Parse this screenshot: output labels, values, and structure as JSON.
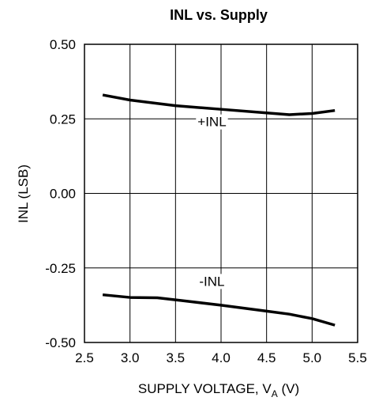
{
  "chart_data": {
    "type": "line",
    "title": "INL vs. Supply",
    "xlabel": {
      "main": "SUPPLY VOLTAGE, V",
      "subscript": "A",
      "unit": " (V)"
    },
    "ylabel": "INL (LSB)",
    "xlim": [
      2.5,
      5.5
    ],
    "ylim": [
      -0.5,
      0.5
    ],
    "x_ticks": [
      2.5,
      3.0,
      3.5,
      4.0,
      4.5,
      5.0,
      5.5
    ],
    "x_tick_labels": [
      "2.5",
      "3.0",
      "3.5",
      "4.0",
      "4.5",
      "5.0",
      "5.5"
    ],
    "y_ticks": [
      0.5,
      0.25,
      0.0,
      -0.25,
      -0.5
    ],
    "y_tick_labels": [
      "0.50",
      "0.25",
      "0.00",
      "-0.25",
      "-0.50"
    ],
    "grid": true,
    "series": [
      {
        "name": "+INL",
        "color": "#000000",
        "x": [
          2.7,
          3.0,
          3.5,
          4.0,
          4.5,
          4.75,
          5.0,
          5.25
        ],
        "y": [
          0.33,
          0.313,
          0.294,
          0.282,
          0.27,
          0.264,
          0.268,
          0.278
        ]
      },
      {
        "name": "-INL",
        "color": "#000000",
        "x": [
          2.7,
          3.0,
          3.3,
          3.5,
          4.0,
          4.5,
          4.75,
          5.0,
          5.25
        ],
        "y": [
          -0.34,
          -0.349,
          -0.35,
          -0.357,
          -0.375,
          -0.395,
          -0.405,
          -0.42,
          -0.442
        ]
      }
    ],
    "annotations": [
      {
        "text": "+INL",
        "x": 3.9,
        "y": 0.225
      },
      {
        "text": "-INL",
        "x": 3.9,
        "y": -0.31
      }
    ]
  }
}
